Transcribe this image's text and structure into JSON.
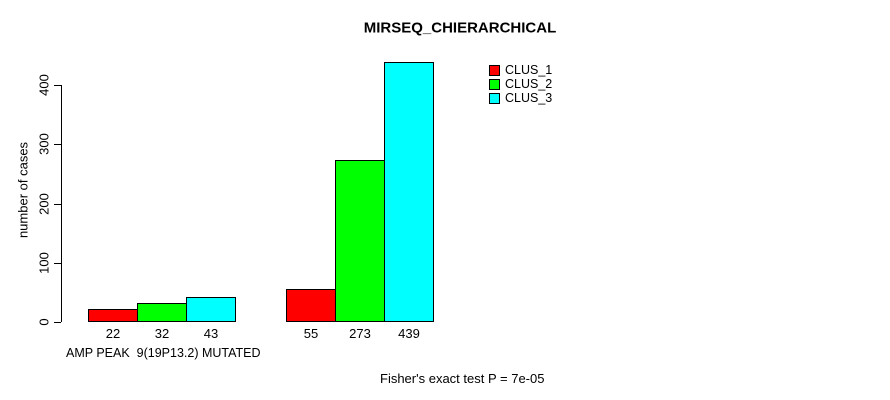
{
  "chart_data": {
    "type": "bar",
    "title": "MIRSEQ_CHIERARCHICAL",
    "ylabel": "number of cases",
    "xlabel": "AMP PEAK  9(19P13.2) MUTATED",
    "annotation": "Fisher's exact test P = 7e-05",
    "ylim": [
      0,
      440
    ],
    "yticks": [
      0,
      100,
      200,
      300,
      400
    ],
    "grid": false,
    "legend_position": "top-right",
    "categories": [
      "AMP PEAK  9(19P13.2) MUTATED",
      ""
    ],
    "series": [
      {
        "name": "CLUS_1",
        "color": "#ff0000",
        "values": [
          22,
          55
        ]
      },
      {
        "name": "CLUS_2",
        "color": "#00ff00",
        "values": [
          32,
          273
        ]
      },
      {
        "name": "CLUS_3",
        "color": "#00ffff",
        "values": [
          43,
          439
        ]
      }
    ],
    "bar_value_labels": [
      [
        22,
        32,
        43
      ],
      [
        55,
        273,
        439
      ]
    ]
  }
}
